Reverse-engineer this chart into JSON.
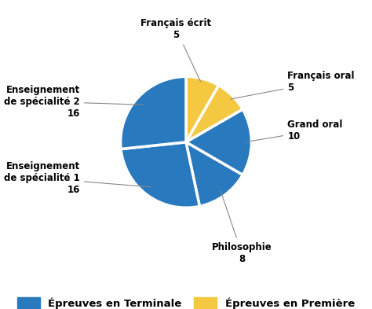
{
  "slices": [
    {
      "label": "Français écrit\n5",
      "value": 5,
      "color": "#F5C842",
      "group": "premiere"
    },
    {
      "label": "Français oral\n5",
      "value": 5,
      "color": "#F5C842",
      "group": "premiere"
    },
    {
      "label": "Grand oral\n10",
      "value": 10,
      "color": "#2979BF",
      "group": "terminale"
    },
    {
      "label": "Philosophie\n8",
      "value": 8,
      "color": "#2979BF",
      "group": "terminale"
    },
    {
      "label": "Enseignement\nde spécialité 1\n16",
      "value": 16,
      "color": "#2979BF",
      "group": "terminale"
    },
    {
      "label": "Enseignement\nde spécialité 2\n16",
      "value": 16,
      "color": "#2979BF",
      "group": "terminale"
    }
  ],
  "blue_color": "#2979BF",
  "yellow_color": "#F5C842",
  "legend_terminale": "Épreuves en Terminale",
  "legend_premiere": "Épreuves en Première",
  "startangle": 90,
  "bg_color": "#FFFFFF",
  "label_fontsize": 8.5,
  "legend_fontsize": 9.5
}
